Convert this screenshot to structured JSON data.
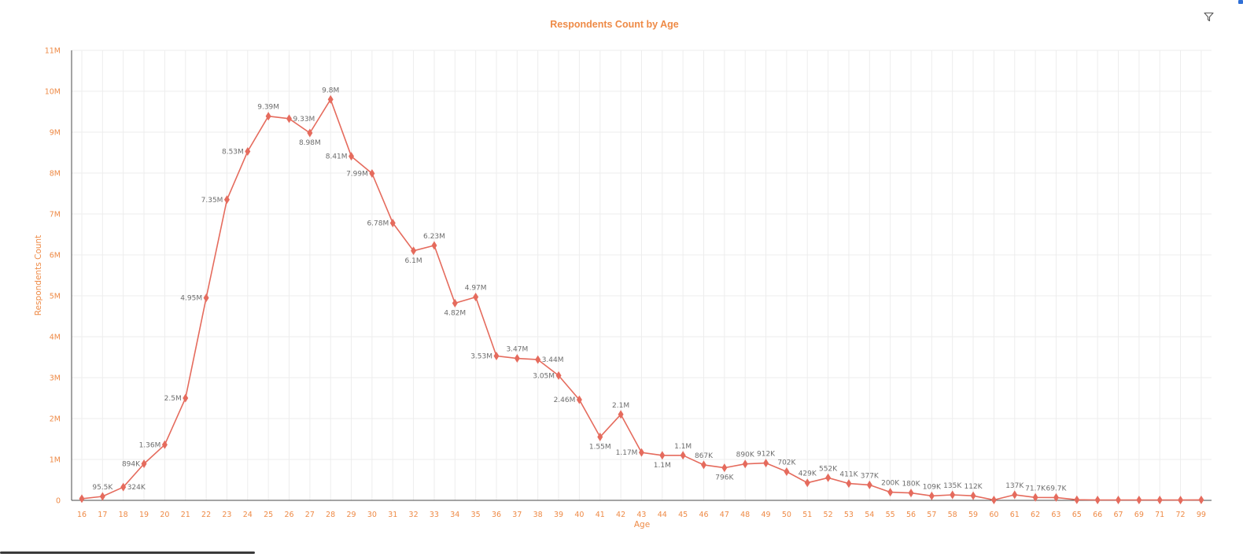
{
  "chart_data": {
    "type": "line",
    "title": "Respondents Count by Age",
    "xlabel": "Age",
    "ylabel": "Respondents Count",
    "ylim": [
      0,
      11000000
    ],
    "y_tick_labels": [
      "0",
      "1M",
      "2M",
      "3M",
      "4M",
      "5M",
      "6M",
      "7M",
      "8M",
      "9M",
      "10M",
      "11M"
    ],
    "grid": true,
    "legend": "none",
    "colors": {
      "line": "#e56b5d",
      "axis_text": "#ee8a46",
      "label_text": "#6d6d6d",
      "grid": "#ededed"
    },
    "categories": [
      "16",
      "17",
      "18",
      "19",
      "20",
      "21",
      "22",
      "23",
      "24",
      "25",
      "26",
      "27",
      "28",
      "29",
      "30",
      "31",
      "32",
      "33",
      "34",
      "35",
      "36",
      "37",
      "38",
      "39",
      "40",
      "41",
      "42",
      "43",
      "44",
      "45",
      "46",
      "47",
      "48",
      "49",
      "50",
      "51",
      "52",
      "53",
      "54",
      "55",
      "56",
      "57",
      "58",
      "59",
      "60",
      "61",
      "62",
      "63",
      "65",
      "66",
      "67",
      "69",
      "71",
      "72",
      "99"
    ],
    "values": [
      40000,
      95500,
      324000,
      894000,
      1360000,
      2500000,
      4950000,
      7350000,
      8530000,
      9390000,
      9330000,
      8980000,
      9800000,
      8410000,
      7990000,
      6780000,
      6100000,
      6230000,
      4820000,
      4970000,
      3530000,
      3470000,
      3440000,
      3050000,
      2460000,
      1550000,
      2100000,
      1170000,
      1100000,
      1100000,
      867000,
      796000,
      890000,
      912000,
      702000,
      429000,
      552000,
      411000,
      377000,
      200000,
      180000,
      109000,
      135000,
      112000,
      10000,
      137000,
      71700,
      69700,
      15000,
      10000,
      10000,
      10000,
      10000,
      8000,
      12000
    ],
    "data_labels": [
      "",
      "95.5K",
      "324K",
      "894K",
      "1.36M",
      "2.5M",
      "4.95M",
      "7.35M",
      "8.53M",
      "9.39M",
      "9.33M",
      "8.98M",
      "9.8M",
      "8.41M",
      "7.99M",
      "6.78M",
      "6.1M",
      "6.23M",
      "4.82M",
      "4.97M",
      "3.53M",
      "3.47M",
      "3.44M",
      "3.05M",
      "2.46M",
      "1.55M",
      "2.1M",
      "1.17M",
      "1.1M",
      "1.1M",
      "867K",
      "796K",
      "890K",
      "912K",
      "702K",
      "429K",
      "552K",
      "411K",
      "377K",
      "200K",
      "180K",
      "109K",
      "135K",
      "112K",
      "",
      "137K",
      "71.7K",
      "69.7K",
      "",
      "",
      "",
      "",
      "",
      "",
      ""
    ],
    "label_pos": [
      "",
      "above",
      "right",
      "left",
      "left",
      "left",
      "left",
      "left",
      "left",
      "above",
      "right",
      "below",
      "above",
      "left",
      "left",
      "left",
      "below",
      "above",
      "below",
      "above",
      "left",
      "above",
      "right",
      "left",
      "left",
      "below",
      "above",
      "left",
      "below",
      "above",
      "above",
      "below",
      "above",
      "above",
      "above",
      "above",
      "above",
      "above",
      "above",
      "above",
      "above",
      "above",
      "above",
      "above",
      "",
      "above",
      "above",
      "above",
      "",
      "",
      "",
      "",
      "",
      "",
      ""
    ]
  }
}
